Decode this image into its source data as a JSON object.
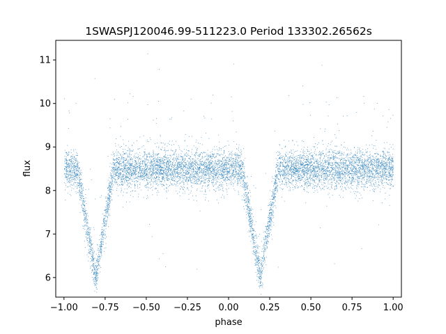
{
  "chart_data": {
    "type": "scatter",
    "title": "1SWASPJ120046.99-511223.0 Period 133302.26562s",
    "xlabel": "phase",
    "ylabel": "flux",
    "xlim": [
      -1.05,
      1.05
    ],
    "ylim": [
      5.55,
      11.45
    ],
    "xticks": [
      -1.0,
      -0.75,
      -0.5,
      -0.25,
      0.0,
      0.25,
      0.5,
      0.75,
      1.0
    ],
    "xtick_labels": [
      "−1.00",
      "−0.75",
      "−0.50",
      "−0.25",
      "0.00",
      "0.25",
      "0.50",
      "0.75",
      "1.00"
    ],
    "yticks": [
      6,
      7,
      8,
      9,
      10,
      11
    ],
    "ytick_labels": [
      "6",
      "7",
      "8",
      "9",
      "10",
      "11"
    ],
    "grid": false,
    "marker_color": "#1f77b4",
    "series": [
      {
        "baseline_flux": 8.5,
        "baseline_scatter": 0.22,
        "phase_range": [
          -1.0,
          1.0
        ],
        "eclipse_minima": [
          {
            "phase": -0.81,
            "min_flux": 6.0,
            "half_width": 0.11
          },
          {
            "phase": 0.19,
            "min_flux": 6.0,
            "half_width": 0.11
          }
        ],
        "outlier_range": [
          5.85,
          11.2
        ]
      }
    ]
  }
}
